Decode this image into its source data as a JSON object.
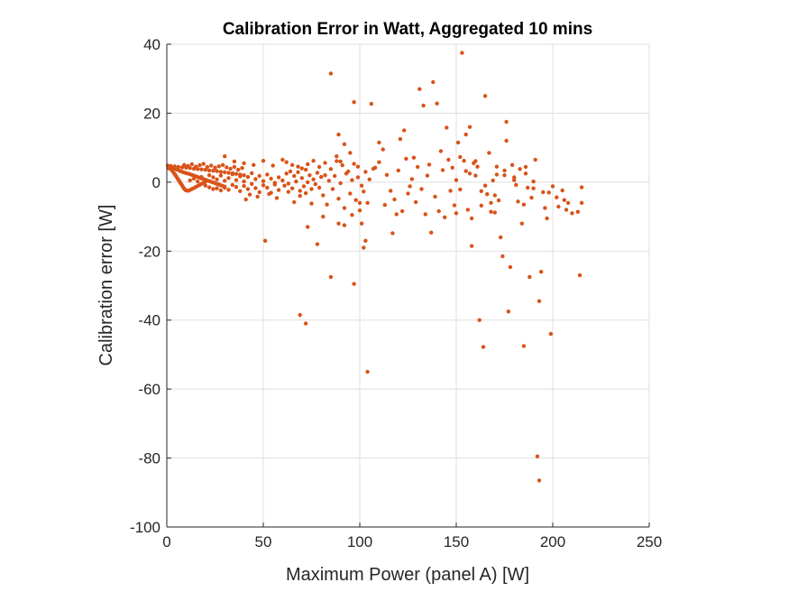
{
  "chart_data": {
    "type": "scatter",
    "title": "Calibration Error in Watt, Aggregated 10 mins",
    "xlabel": "Maximum Power (panel A) [W]",
    "ylabel": "Calibration error [W]",
    "xlim": [
      0,
      250
    ],
    "ylim": [
      -100,
      40
    ],
    "xticks": [
      0,
      50,
      100,
      150,
      200,
      250
    ],
    "yticks": [
      -100,
      -80,
      -60,
      -40,
      -20,
      0,
      20,
      40
    ],
    "xtick_labels": [
      "0",
      "50",
      "100",
      "150",
      "200",
      "250"
    ],
    "ytick_labels": [
      "-100",
      "-80",
      "-60",
      "-40",
      "-20",
      "0",
      "20",
      "40"
    ],
    "grid": true,
    "marker_color": "#D95319",
    "points": [
      [
        0.5,
        4.8
      ],
      [
        1,
        4.5
      ],
      [
        1.5,
        4.2
      ],
      [
        2,
        4.0
      ],
      [
        2.5,
        3.6
      ],
      [
        3,
        3.2
      ],
      [
        3.5,
        2.8
      ],
      [
        4,
        2.4
      ],
      [
        4.5,
        2.0
      ],
      [
        5,
        1.6
      ],
      [
        5.5,
        1.1
      ],
      [
        6,
        0.7
      ],
      [
        6.5,
        0.3
      ],
      [
        7,
        -0.2
      ],
      [
        7.5,
        -0.6
      ],
      [
        8,
        -1.0
      ],
      [
        8.5,
        -1.5
      ],
      [
        9,
        -1.9
      ],
      [
        9.5,
        -2.2
      ],
      [
        10,
        -2.4
      ],
      [
        11,
        -2.5
      ],
      [
        12,
        -2.3
      ],
      [
        13,
        -2.0
      ],
      [
        14,
        -1.7
      ],
      [
        15,
        -1.4
      ],
      [
        16,
        -1.1
      ],
      [
        17,
        -0.8
      ],
      [
        18,
        -0.5
      ],
      [
        19,
        -0.2
      ],
      [
        20,
        0.1
      ],
      [
        1,
        4.0
      ],
      [
        2,
        3.8
      ],
      [
        3,
        3.9
      ],
      [
        4,
        4.1
      ],
      [
        5,
        3.7
      ],
      [
        6,
        3.5
      ],
      [
        7,
        3.2
      ],
      [
        8,
        3.0
      ],
      [
        9,
        2.8
      ],
      [
        10,
        2.6
      ],
      [
        11,
        2.5
      ],
      [
        12,
        2.3
      ],
      [
        13,
        2.1
      ],
      [
        14,
        1.9
      ],
      [
        15,
        1.7
      ],
      [
        16,
        1.5
      ],
      [
        17,
        1.3
      ],
      [
        18,
        1.1
      ],
      [
        19,
        0.9
      ],
      [
        20,
        0.7
      ],
      [
        21,
        0.5
      ],
      [
        22,
        0.3
      ],
      [
        23,
        0.1
      ],
      [
        24,
        -0.1
      ],
      [
        25,
        -0.3
      ],
      [
        26,
        -0.5
      ],
      [
        27,
        -0.7
      ],
      [
        28,
        -0.9
      ],
      [
        29,
        -1.1
      ],
      [
        30,
        -1.3
      ],
      [
        2,
        4.7
      ],
      [
        4,
        4.6
      ],
      [
        6,
        4.4
      ],
      [
        8,
        4.3
      ],
      [
        10,
        4.2
      ],
      [
        12,
        4.1
      ],
      [
        14,
        3.9
      ],
      [
        16,
        3.8
      ],
      [
        18,
        3.7
      ],
      [
        20,
        3.6
      ],
      [
        22,
        3.4
      ],
      [
        24,
        3.3
      ],
      [
        26,
        3.2
      ],
      [
        28,
        3.0
      ],
      [
        30,
        2.9
      ],
      [
        32,
        2.7
      ],
      [
        34,
        2.6
      ],
      [
        36,
        2.4
      ],
      [
        38,
        2.2
      ],
      [
        40,
        2.0
      ],
      [
        9,
        5.0
      ],
      [
        11,
        4.7
      ],
      [
        13,
        5.2
      ],
      [
        15,
        4.5
      ],
      [
        17,
        4.9
      ],
      [
        19,
        5.3
      ],
      [
        21,
        4.4
      ],
      [
        23,
        4.8
      ],
      [
        25,
        4.2
      ],
      [
        27,
        4.6
      ],
      [
        29,
        5.0
      ],
      [
        31,
        4.3
      ],
      [
        33,
        3.9
      ],
      [
        35,
        4.4
      ],
      [
        37,
        3.6
      ],
      [
        39,
        4.1
      ],
      [
        12,
        0.5
      ],
      [
        14,
        1.0
      ],
      [
        16,
        0.2
      ],
      [
        18,
        1.5
      ],
      [
        20,
        -1.0
      ],
      [
        22,
        -1.5
      ],
      [
        24,
        -2.0
      ],
      [
        26,
        -1.8
      ],
      [
        28,
        -2.4
      ],
      [
        30,
        -1.6
      ],
      [
        32,
        -2.2
      ],
      [
        34,
        -0.8
      ],
      [
        36,
        -1.4
      ],
      [
        38,
        -2.6
      ],
      [
        40,
        -1.1
      ],
      [
        42,
        -2.0
      ],
      [
        44,
        -0.5
      ],
      [
        46,
        -1.7
      ],
      [
        48,
        -2.9
      ],
      [
        50,
        -0.9
      ],
      [
        52,
        -1.6
      ],
      [
        54,
        -3.1
      ],
      [
        56,
        -0.7
      ],
      [
        58,
        -2.3
      ],
      [
        22,
        2.0
      ],
      [
        24,
        1.4
      ],
      [
        26,
        0.8
      ],
      [
        28,
        1.9
      ],
      [
        30,
        0.4
      ],
      [
        32,
        1.2
      ],
      [
        34,
        2.3
      ],
      [
        36,
        0.6
      ],
      [
        38,
        1.7
      ],
      [
        40,
        0.2
      ],
      [
        42,
        1.5
      ],
      [
        44,
        2.6
      ],
      [
        46,
        0.9
      ],
      [
        48,
        1.8
      ],
      [
        50,
        0.3
      ],
      [
        52,
        2.2
      ],
      [
        54,
        1.0
      ],
      [
        56,
        -0.2
      ],
      [
        58,
        1.4
      ],
      [
        60,
        0.5
      ],
      [
        30,
        7.5
      ],
      [
        35,
        6.0
      ],
      [
        40,
        5.5
      ],
      [
        45,
        5.0
      ],
      [
        50,
        6.2
      ],
      [
        55,
        4.8
      ],
      [
        60,
        6.5
      ],
      [
        62,
        5.8
      ],
      [
        65,
        5.0
      ],
      [
        68,
        4.5
      ],
      [
        41,
        -5.0
      ],
      [
        43,
        -3.6
      ],
      [
        47,
        -4.2
      ],
      [
        53,
        -3.4
      ],
      [
        57,
        -4.6
      ],
      [
        63,
        -2.8
      ],
      [
        66,
        -5.8
      ],
      [
        69,
        -4.0
      ],
      [
        72,
        -3.2
      ],
      [
        75,
        -6.2
      ],
      [
        62,
        2.5
      ],
      [
        64,
        3.1
      ],
      [
        66,
        1.8
      ],
      [
        68,
        2.9
      ],
      [
        70,
        1.2
      ],
      [
        72,
        3.6
      ],
      [
        74,
        2.0
      ],
      [
        76,
        0.8
      ],
      [
        78,
        2.7
      ],
      [
        80,
        1.5
      ],
      [
        61,
        -1.0
      ],
      [
        63,
        -0.4
      ],
      [
        65,
        -1.8
      ],
      [
        67,
        0.2
      ],
      [
        69,
        -2.5
      ],
      [
        71,
        -1.2
      ],
      [
        73,
        0.0
      ],
      [
        75,
        -2.0
      ],
      [
        77,
        -0.6
      ],
      [
        79,
        -1.6
      ],
      [
        70,
        4.0
      ],
      [
        73,
        5.2
      ],
      [
        76,
        6.2
      ],
      [
        79,
        4.4
      ],
      [
        82,
        5.6
      ],
      [
        85,
        3.8
      ],
      [
        88,
        6.1
      ],
      [
        91,
        4.9
      ],
      [
        94,
        3.1
      ],
      [
        97,
        5.3
      ],
      [
        81,
        -3.8
      ],
      [
        83,
        -6.5
      ],
      [
        86,
        -2.0
      ],
      [
        89,
        -4.8
      ],
      [
        92,
        -7.5
      ],
      [
        95,
        -3.3
      ],
      [
        98,
        -5.2
      ],
      [
        100,
        -8.2
      ],
      [
        102,
        -2.7
      ],
      [
        104,
        -6.0
      ],
      [
        82,
        2.0
      ],
      [
        84,
        0.4
      ],
      [
        87,
        1.8
      ],
      [
        90,
        -0.3
      ],
      [
        93,
        2.5
      ],
      [
        96,
        0.6
      ],
      [
        99,
        1.4
      ],
      [
        101,
        -1.0
      ],
      [
        103,
        3.0
      ],
      [
        105,
        0.8
      ],
      [
        85,
        31.5
      ],
      [
        97,
        23.2
      ],
      [
        106,
        22.7
      ],
      [
        89,
        13.8
      ],
      [
        92,
        11.0
      ],
      [
        88,
        7.5
      ],
      [
        90,
        6.0
      ],
      [
        95,
        8.5
      ],
      [
        99,
        4.5
      ],
      [
        107,
        3.9
      ],
      [
        73,
        -13.0
      ],
      [
        78,
        -18.0
      ],
      [
        81,
        -10.0
      ],
      [
        89,
        -12.0
      ],
      [
        92,
        -12.5
      ],
      [
        96,
        -9.5
      ],
      [
        101,
        -12.0
      ],
      [
        103,
        -17.0
      ],
      [
        102,
        -19.0
      ],
      [
        100,
        -6.0
      ],
      [
        51,
        -17.0
      ],
      [
        69,
        -38.5
      ],
      [
        72,
        -41.0
      ],
      [
        85,
        -27.5
      ],
      [
        97,
        -29.5
      ],
      [
        104,
        -55.0
      ],
      [
        108,
        4.2
      ],
      [
        110,
        5.8
      ],
      [
        112,
        9.5
      ],
      [
        114,
        2.1
      ],
      [
        116,
        -2.5
      ],
      [
        118,
        -5.0
      ],
      [
        120,
        3.4
      ],
      [
        122,
        -8.4
      ],
      [
        124,
        6.8
      ],
      [
        126,
        -1.2
      ],
      [
        110,
        11.5
      ],
      [
        113,
        -6.6
      ],
      [
        117,
        -14.8
      ],
      [
        119,
        -9.3
      ],
      [
        123,
        15.0
      ],
      [
        121,
        12.5
      ],
      [
        125,
        -3.3
      ],
      [
        127,
        0.9
      ],
      [
        128,
        7.1
      ],
      [
        129,
        -5.8
      ],
      [
        130,
        4.4
      ],
      [
        131,
        27.0
      ],
      [
        133,
        22.2
      ],
      [
        134,
        -9.3
      ],
      [
        136,
        5.1
      ],
      [
        137,
        -14.6
      ],
      [
        138,
        29.0
      ],
      [
        140,
        22.8
      ],
      [
        141,
        -8.4
      ],
      [
        142,
        9.0
      ],
      [
        132,
        -2.0
      ],
      [
        135,
        1.9
      ],
      [
        139,
        -4.2
      ],
      [
        143,
        3.5
      ],
      [
        144,
        -10.2
      ],
      [
        145,
        15.8
      ],
      [
        146,
        6.5
      ],
      [
        147,
        -2.5
      ],
      [
        148,
        4.2
      ],
      [
        149,
        -6.7
      ],
      [
        150,
        0.6
      ],
      [
        151,
        11.5
      ],
      [
        152,
        -2.1
      ],
      [
        153,
        37.5
      ],
      [
        154,
        6.2
      ],
      [
        155,
        13.8
      ],
      [
        156,
        -8.0
      ],
      [
        157,
        2.5
      ],
      [
        158,
        -18.5
      ],
      [
        159,
        5.5
      ],
      [
        150,
        -9.0
      ],
      [
        152,
        7.3
      ],
      [
        155,
        3.2
      ],
      [
        157,
        16.0
      ],
      [
        158,
        -10.5
      ],
      [
        160,
        1.9
      ],
      [
        161,
        4.5
      ],
      [
        162,
        -40.0
      ],
      [
        163,
        -2.6
      ],
      [
        164,
        -47.8
      ],
      [
        165,
        25.0
      ],
      [
        166,
        -3.5
      ],
      [
        167,
        8.5
      ],
      [
        168,
        -6.0
      ],
      [
        169,
        0.5
      ],
      [
        170,
        -8.8
      ],
      [
        171,
        2.2
      ],
      [
        172,
        -5.3
      ],
      [
        173,
        -16.0
      ],
      [
        174,
        -21.5
      ],
      [
        175,
        3.4
      ],
      [
        176,
        17.5
      ],
      [
        177,
        -37.5
      ],
      [
        178,
        -24.6
      ],
      [
        179,
        5.0
      ],
      [
        180,
        1.4
      ],
      [
        181,
        -0.8
      ],
      [
        182,
        -5.6
      ],
      [
        183,
        3.8
      ],
      [
        184,
        -12.0
      ],
      [
        185,
        -47.5
      ],
      [
        186,
        2.5
      ],
      [
        187,
        -1.6
      ],
      [
        188,
        -27.5
      ],
      [
        189,
        -4.5
      ],
      [
        190,
        0.2
      ],
      [
        191,
        6.5
      ],
      [
        192,
        -79.5
      ],
      [
        193,
        -86.5
      ],
      [
        194,
        -26.0
      ],
      [
        193,
        -34.5
      ],
      [
        195,
        -2.9
      ],
      [
        196,
        -7.5
      ],
      [
        197,
        -10.5
      ],
      [
        198,
        -3.0
      ],
      [
        199,
        -44.0
      ],
      [
        200,
        -1.2
      ],
      [
        202,
        -4.4
      ],
      [
        203,
        -7.1
      ],
      [
        205,
        -2.4
      ],
      [
        206,
        -5.2
      ],
      [
        207,
        -8.0
      ],
      [
        208,
        -6.0
      ],
      [
        210,
        -9.0
      ],
      [
        213,
        -8.6
      ],
      [
        214,
        -27.0
      ],
      [
        215,
        -1.5
      ],
      [
        215,
        -6.0
      ],
      [
        176,
        12.0
      ],
      [
        186,
        4.4
      ],
      [
        160,
        6.1
      ],
      [
        165,
        -1.0
      ],
      [
        170,
        -3.8
      ],
      [
        175,
        2.0
      ],
      [
        180,
        0.6
      ],
      [
        185,
        -6.5
      ],
      [
        190,
        -1.8
      ],
      [
        171,
        4.5
      ],
      [
        163,
        -6.8
      ],
      [
        168,
        -8.6
      ]
    ]
  }
}
